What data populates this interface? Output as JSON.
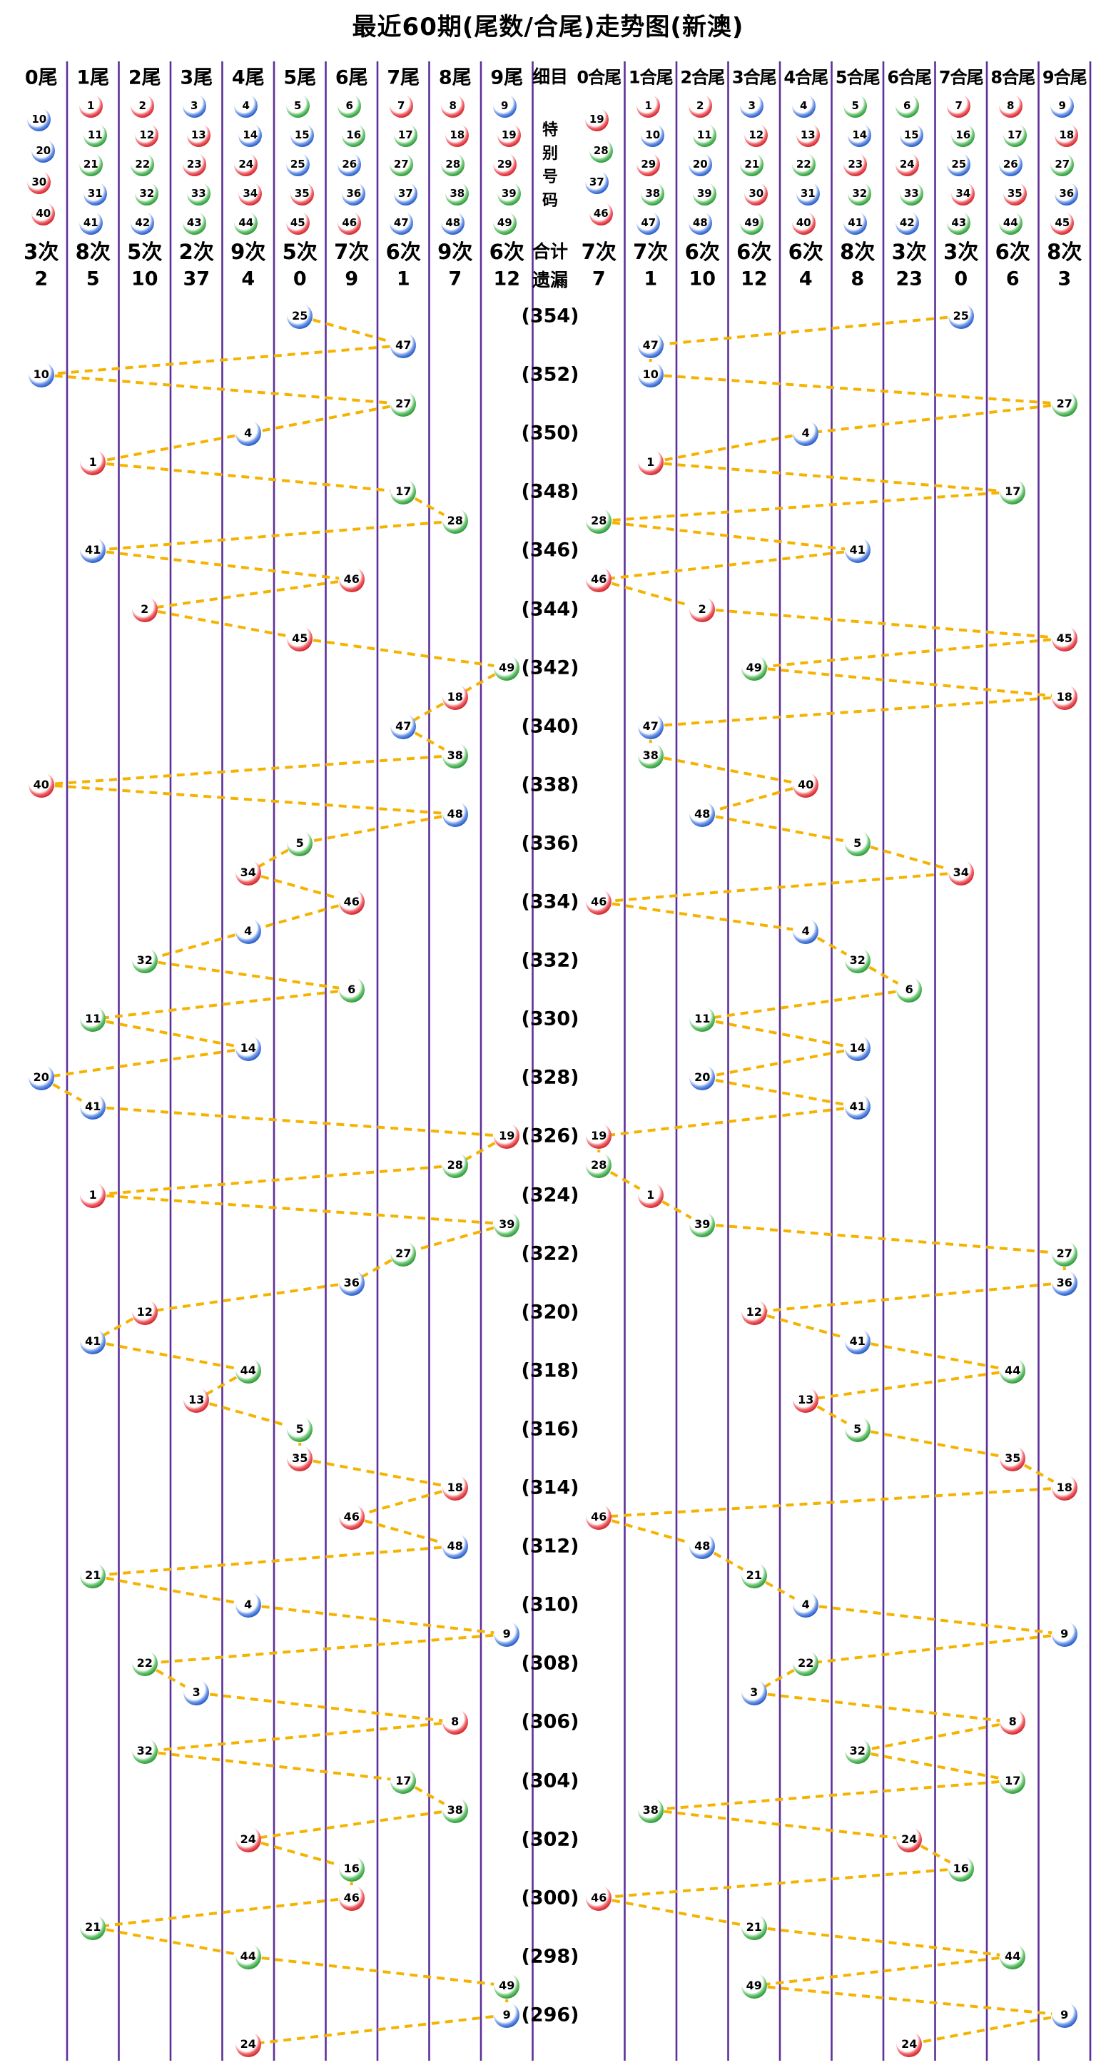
{
  "title": "最近60期(尾数/合尾)走势图(新澳)",
  "middle": {
    "header": "细目",
    "special_label": "特别号码",
    "total_label": "合计",
    "miss_label": "遗漏"
  },
  "left_columns": [
    {
      "label": "0尾",
      "balls": [
        10,
        20,
        30,
        40
      ],
      "count": "3次",
      "miss": "2"
    },
    {
      "label": "1尾",
      "balls": [
        1,
        11,
        21,
        31,
        41
      ],
      "count": "8次",
      "miss": "5"
    },
    {
      "label": "2尾",
      "balls": [
        2,
        12,
        22,
        32,
        42
      ],
      "count": "5次",
      "miss": "10"
    },
    {
      "label": "3尾",
      "balls": [
        3,
        13,
        23,
        33,
        43
      ],
      "count": "2次",
      "miss": "37"
    },
    {
      "label": "4尾",
      "balls": [
        4,
        14,
        24,
        34,
        44
      ],
      "count": "9次",
      "miss": "4"
    },
    {
      "label": "5尾",
      "balls": [
        5,
        15,
        25,
        35,
        45
      ],
      "count": "5次",
      "miss": "0"
    },
    {
      "label": "6尾",
      "balls": [
        6,
        16,
        26,
        36,
        46
      ],
      "count": "7次",
      "miss": "9"
    },
    {
      "label": "7尾",
      "balls": [
        7,
        17,
        27,
        37,
        47
      ],
      "count": "6次",
      "miss": "1"
    },
    {
      "label": "8尾",
      "balls": [
        8,
        18,
        28,
        38,
        48
      ],
      "count": "9次",
      "miss": "7"
    },
    {
      "label": "9尾",
      "balls": [
        9,
        19,
        29,
        39,
        49
      ],
      "count": "6次",
      "miss": "12"
    }
  ],
  "right_columns": [
    {
      "label": "0合尾",
      "balls": [
        19,
        28,
        37,
        46
      ],
      "count": "7次",
      "miss": "7"
    },
    {
      "label": "1合尾",
      "balls": [
        1,
        10,
        29,
        38,
        47
      ],
      "count": "7次",
      "miss": "1"
    },
    {
      "label": "2合尾",
      "balls": [
        2,
        11,
        20,
        39,
        48
      ],
      "count": "6次",
      "miss": "10"
    },
    {
      "label": "3合尾",
      "balls": [
        3,
        12,
        21,
        30,
        49
      ],
      "count": "6次",
      "miss": "12"
    },
    {
      "label": "4合尾",
      "balls": [
        4,
        13,
        22,
        31,
        40
      ],
      "count": "6次",
      "miss": "4"
    },
    {
      "label": "5合尾",
      "balls": [
        5,
        14,
        23,
        32,
        41
      ],
      "count": "8次",
      "miss": "8"
    },
    {
      "label": "6合尾",
      "balls": [
        6,
        15,
        24,
        33,
        42
      ],
      "count": "3次",
      "miss": "23"
    },
    {
      "label": "7合尾",
      "balls": [
        7,
        16,
        25,
        34,
        43
      ],
      "count": "3次",
      "miss": "0"
    },
    {
      "label": "8合尾",
      "balls": [
        8,
        17,
        26,
        35,
        44
      ],
      "count": "6次",
      "miss": "6"
    },
    {
      "label": "9合尾",
      "balls": [
        9,
        18,
        27,
        36,
        45
      ],
      "count": "8次",
      "miss": "3"
    }
  ],
  "chart_data": {
    "type": "scatter",
    "title": "最近60期(尾数/合尾)走势图(新澳)",
    "description": "60 draws, newest at top. Each row plots the special number once in its tail-digit (尾) column on the left block and once in its digit-sum-tail (合尾) column on the right block; consecutive draws are joined by dashed connectors on each side.",
    "left_categories": [
      "0尾",
      "1尾",
      "2尾",
      "3尾",
      "4尾",
      "5尾",
      "6尾",
      "7尾",
      "8尾",
      "9尾"
    ],
    "right_categories": [
      "0合尾",
      "1合尾",
      "2合尾",
      "3合尾",
      "4合尾",
      "5合尾",
      "6合尾",
      "7合尾",
      "8合尾",
      "9合尾"
    ],
    "rows": [
      {
        "special": 25,
        "period_label": "(354)"
      },
      {
        "special": 47,
        "period_label": ""
      },
      {
        "special": 10,
        "period_label": "(352)"
      },
      {
        "special": 27,
        "period_label": ""
      },
      {
        "special": 4,
        "period_label": "(350)"
      },
      {
        "special": 1,
        "period_label": ""
      },
      {
        "special": 17,
        "period_label": "(348)"
      },
      {
        "special": 28,
        "period_label": ""
      },
      {
        "special": 41,
        "period_label": "(346)"
      },
      {
        "special": 46,
        "period_label": ""
      },
      {
        "special": 2,
        "period_label": "(344)"
      },
      {
        "special": 45,
        "period_label": ""
      },
      {
        "special": 49,
        "period_label": "(342)"
      },
      {
        "special": 18,
        "period_label": ""
      },
      {
        "special": 47,
        "period_label": "(340)"
      },
      {
        "special": 38,
        "period_label": ""
      },
      {
        "special": 40,
        "period_label": "(338)"
      },
      {
        "special": 48,
        "period_label": ""
      },
      {
        "special": 5,
        "period_label": "(336)"
      },
      {
        "special": 34,
        "period_label": ""
      },
      {
        "special": 46,
        "period_label": "(334)"
      },
      {
        "special": 4,
        "period_label": ""
      },
      {
        "special": 32,
        "period_label": "(332)"
      },
      {
        "special": 6,
        "period_label": ""
      },
      {
        "special": 11,
        "period_label": "(330)"
      },
      {
        "special": 14,
        "period_label": ""
      },
      {
        "special": 20,
        "period_label": "(328)"
      },
      {
        "special": 41,
        "period_label": ""
      },
      {
        "special": 19,
        "period_label": "(326)"
      },
      {
        "special": 28,
        "period_label": ""
      },
      {
        "special": 1,
        "period_label": "(324)"
      },
      {
        "special": 39,
        "period_label": ""
      },
      {
        "special": 27,
        "period_label": "(322)"
      },
      {
        "special": 36,
        "period_label": ""
      },
      {
        "special": 12,
        "period_label": "(320)"
      },
      {
        "special": 41,
        "period_label": ""
      },
      {
        "special": 44,
        "period_label": "(318)"
      },
      {
        "special": 13,
        "period_label": ""
      },
      {
        "special": 5,
        "period_label": "(316)"
      },
      {
        "special": 35,
        "period_label": ""
      },
      {
        "special": 18,
        "period_label": "(314)"
      },
      {
        "special": 46,
        "period_label": ""
      },
      {
        "special": 48,
        "period_label": "(312)"
      },
      {
        "special": 21,
        "period_label": ""
      },
      {
        "special": 4,
        "period_label": "(310)"
      },
      {
        "special": 9,
        "period_label": ""
      },
      {
        "special": 22,
        "period_label": "(308)"
      },
      {
        "special": 3,
        "period_label": ""
      },
      {
        "special": 8,
        "period_label": "(306)"
      },
      {
        "special": 32,
        "period_label": ""
      },
      {
        "special": 17,
        "period_label": "(304)"
      },
      {
        "special": 38,
        "period_label": ""
      },
      {
        "special": 24,
        "period_label": "(302)"
      },
      {
        "special": 16,
        "period_label": ""
      },
      {
        "special": 46,
        "period_label": "(300)"
      },
      {
        "special": 21,
        "period_label": ""
      },
      {
        "special": 44,
        "period_label": "(298)"
      },
      {
        "special": 49,
        "period_label": ""
      },
      {
        "special": 9,
        "period_label": "(296)"
      },
      {
        "special": 24,
        "period_label": ""
      }
    ]
  },
  "ball_color_groups": {
    "red": [
      1,
      2,
      7,
      8,
      12,
      13,
      18,
      19,
      23,
      24,
      29,
      30,
      34,
      35,
      40,
      45,
      46
    ],
    "blue": [
      3,
      4,
      9,
      10,
      14,
      15,
      20,
      25,
      26,
      31,
      36,
      37,
      41,
      42,
      47,
      48
    ],
    "green": [
      5,
      6,
      11,
      16,
      17,
      21,
      22,
      27,
      28,
      32,
      33,
      38,
      39,
      43,
      44,
      49
    ]
  },
  "palette": {
    "red": "#cc1f26",
    "blue": "#1f55c0",
    "green": "#279433",
    "grid_line": "#5e2f9a",
    "connector": "#f5b301",
    "text": "#000000"
  }
}
